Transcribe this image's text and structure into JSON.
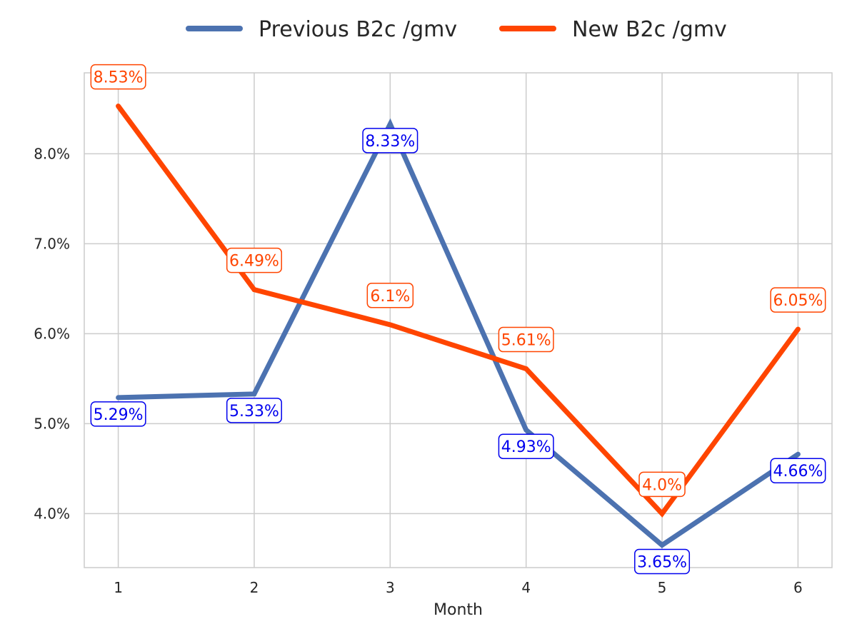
{
  "chart_data": {
    "type": "line",
    "xlabel": "Month",
    "ylabel": "",
    "x": [
      1,
      2,
      3,
      4,
      5,
      6
    ],
    "x_ticks": [
      "1",
      "2",
      "3",
      "4",
      "5",
      "6"
    ],
    "xlim": [
      0.75,
      6.25
    ],
    "ylim": [
      3.4,
      8.9
    ],
    "y_ticks": [
      4.0,
      5.0,
      6.0,
      7.0,
      8.0
    ],
    "y_tick_labels": [
      "4.0%",
      "5.0%",
      "6.0%",
      "7.0%",
      "8.0%"
    ],
    "grid": true,
    "legend_position": "top-center",
    "series": [
      {
        "name": "Previous B2c /gmv",
        "color": "#4c72b0",
        "label_color": "#0000ee",
        "label_position": "below",
        "values": [
          5.29,
          5.33,
          8.33,
          4.93,
          3.65,
          4.66
        ],
        "labels": [
          "5.29%",
          "5.33%",
          "8.33%",
          "4.93%",
          "3.65%",
          "4.66%"
        ]
      },
      {
        "name": "New B2c /gmv",
        "color": "#ff4500",
        "label_color": "#ff4500",
        "label_position": "above",
        "values": [
          8.53,
          6.49,
          6.1,
          5.61,
          4.0,
          6.05
        ],
        "labels": [
          "8.53%",
          "6.49%",
          "6.1%",
          "5.61%",
          "4.0%",
          "6.05%"
        ]
      }
    ]
  }
}
